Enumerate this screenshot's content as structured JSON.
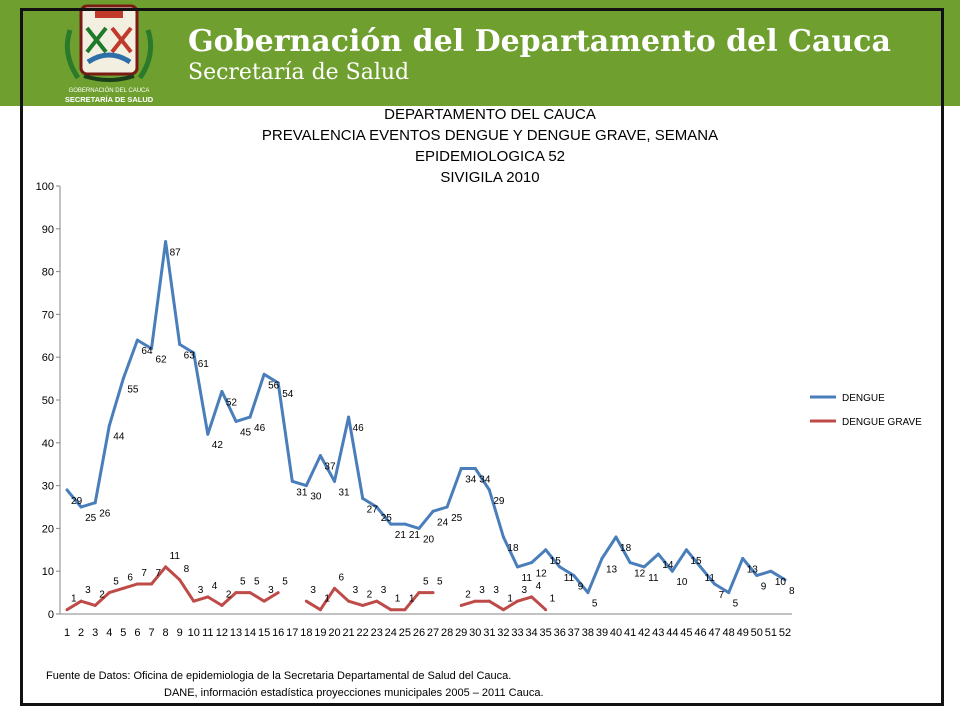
{
  "header": {
    "org_name": "Gobernación del Departamento del Cauca",
    "org_sub": "Secretaría de Salud",
    "seal_caption_1": "GOBERNACIÓN DEL CAUCA",
    "seal_caption_2": "SECRETARÍA DE SALUD"
  },
  "colors": {
    "header_bg": "#6f9f2f",
    "dengue": "#4a7ebb",
    "dengue_grave": "#be4b48"
  },
  "chart_data": {
    "type": "line",
    "title_lines": [
      "DEPARTAMENTO DEL CAUCA",
      "PREVALENCIA EVENTOS DENGUE Y DENGUE GRAVE, SEMANA",
      "EPIDEMIOLOGICA 52",
      "SIVIGILA 2010"
    ],
    "xlabel": "",
    "ylabel": "",
    "ylim": [
      0,
      100
    ],
    "yticks": [
      0,
      10,
      20,
      30,
      40,
      50,
      60,
      70,
      80,
      90,
      100
    ],
    "categories": [
      "1",
      "2",
      "3",
      "4",
      "5",
      "6",
      "7",
      "8",
      "9",
      "10",
      "11",
      "12",
      "13",
      "14",
      "15",
      "16",
      "17",
      "18",
      "19",
      "20",
      "21",
      "22",
      "23",
      "24",
      "25",
      "26",
      "27",
      "28",
      "29",
      "30",
      "31",
      "32",
      "33",
      "34",
      "35",
      "36",
      "37",
      "38",
      "39",
      "40",
      "41",
      "42",
      "43",
      "44",
      "45",
      "46",
      "47",
      "48",
      "49",
      "50",
      "51",
      "52"
    ],
    "legend_position": "right",
    "grid": false,
    "series": [
      {
        "name": "DENGUE",
        "values": [
          29,
          25,
          26,
          44,
          55,
          64,
          62,
          87,
          63,
          61,
          42,
          52,
          45,
          46,
          56,
          54,
          31,
          30,
          37,
          31,
          46,
          27,
          25,
          21,
          21,
          20,
          24,
          25,
          34,
          34,
          29,
          18,
          11,
          12,
          15,
          11,
          9,
          5,
          13,
          18,
          12,
          11,
          14,
          10,
          15,
          11,
          7,
          5,
          13,
          9,
          10,
          8
        ]
      },
      {
        "name": "DENGUE GRAVE",
        "values": [
          1,
          3,
          2,
          5,
          6,
          7,
          7,
          11,
          8,
          3,
          4,
          2,
          5,
          5,
          3,
          5,
          null,
          3,
          1,
          6,
          3,
          2,
          3,
          1,
          1,
          5,
          5,
          null,
          2,
          3,
          3,
          1,
          3,
          4,
          1,
          null,
          null,
          null,
          null,
          null,
          null,
          null,
          null,
          null,
          null,
          null,
          null,
          null,
          null,
          null,
          null,
          null
        ]
      }
    ]
  },
  "source": {
    "line1": "Fuente  de Datos: Oficina de epidemiologia de la Secretaria Departamental de Salud del Cauca.",
    "line2": "DANE, información estadística proyecciones municipales 2005 – 2011 Cauca."
  }
}
